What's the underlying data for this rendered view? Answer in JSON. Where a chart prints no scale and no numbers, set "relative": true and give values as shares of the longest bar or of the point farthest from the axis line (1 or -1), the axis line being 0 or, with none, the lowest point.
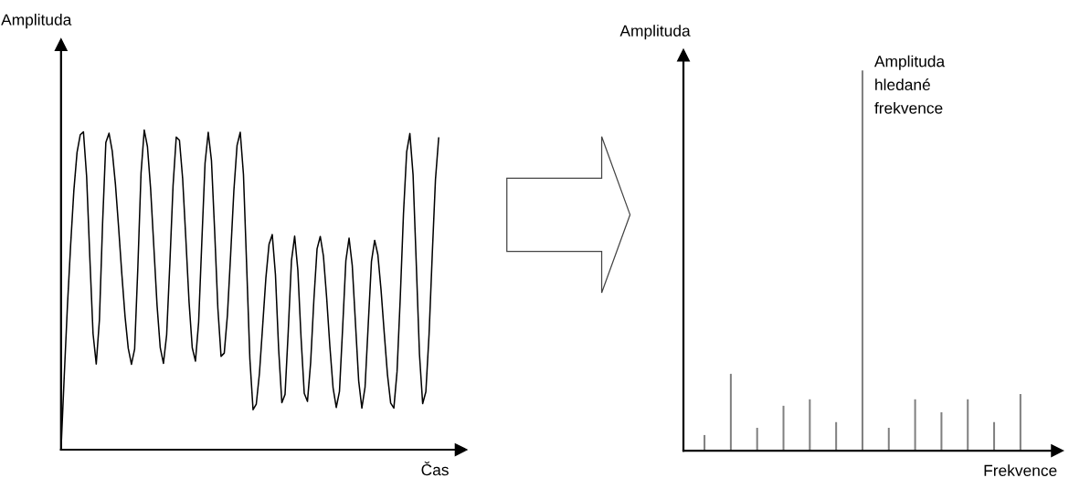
{
  "chart_data": [
    {
      "type": "line",
      "relative": true,
      "xlabel": "Čas",
      "ylabel": "Amplituda",
      "marker": "none",
      "line_style": "solid",
      "categories": [
        null,
        null,
        null,
        null,
        null,
        null,
        null,
        null,
        null,
        null,
        null,
        null,
        null,
        null,
        null,
        null,
        null,
        null,
        null,
        null,
        null,
        null,
        null,
        null,
        null,
        null,
        null,
        null,
        null,
        null,
        null,
        null,
        null,
        null,
        null,
        null,
        null,
        null,
        null,
        null,
        null,
        null,
        null,
        null,
        null,
        null,
        null,
        null,
        null,
        null,
        null,
        null,
        null,
        null,
        null,
        null,
        null,
        null,
        null,
        null,
        null,
        null,
        null,
        null,
        null,
        null,
        null,
        null,
        null,
        null,
        null,
        null,
        null,
        null,
        null,
        null,
        null,
        null,
        null,
        null,
        null,
        null,
        null,
        null,
        null,
        null,
        null,
        null,
        null,
        null,
        null,
        null,
        null,
        null,
        null,
        null,
        null,
        null,
        null,
        null,
        null,
        null,
        null,
        null,
        null,
        null,
        null,
        null,
        null,
        null,
        null,
        null,
        null,
        null,
        null,
        null,
        null,
        null,
        null
      ],
      "series": [
        {
          "color": "#000000",
          "values": [
            0,
            0.23,
            0.45,
            0.64,
            0.81,
            0.93,
            0.985,
            0.994,
            0.854,
            0.6,
            0.363,
            0.268,
            0.407,
            0.713,
            0.961,
            0.99,
            0.934,
            0.83,
            0.694,
            0.549,
            0.417,
            0.317,
            0.267,
            0.315,
            0.57,
            0.865,
            1,
            0.948,
            0.815,
            0.634,
            0.452,
            0.319,
            0.27,
            0.359,
            0.582,
            0.825,
            0.978,
            0.968,
            0.848,
            0.659,
            0.462,
            0.319,
            0.277,
            0.399,
            0.652,
            0.896,
            0.993,
            0.905,
            0.684,
            0.443,
            0.292,
            0.302,
            0.422,
            0.611,
            0.809,
            0.952,
            0.993,
            0.861,
            0.576,
            0.285,
            0.125,
            0.142,
            0.239,
            0.387,
            0.536,
            0.643,
            0.673,
            0.547,
            0.314,
            0.147,
            0.173,
            0.371,
            0.591,
            0.668,
            0.561,
            0.35,
            0.176,
            0.151,
            0.273,
            0.468,
            0.628,
            0.667,
            0.605,
            0.475,
            0.324,
            0.194,
            0.132,
            0.182,
            0.382,
            0.591,
            0.662,
            0.576,
            0.396,
            0.216,
            0.13,
            0.196,
            0.393,
            0.589,
            0.655,
            0.61,
            0.499,
            0.364,
            0.235,
            0.146,
            0.13,
            0.245,
            0.476,
            0.737,
            0.931,
            0.989,
            0.86,
            0.583,
            0.299,
            0.144,
            0.181,
            0.361,
            0.611,
            0.845,
            0.975
          ]
        }
      ]
    },
    {
      "type": "bar",
      "relative": true,
      "xlabel": "Frekvence",
      "ylabel": "Amplituda",
      "categories": [
        null,
        null,
        null,
        null,
        null,
        null,
        null,
        null,
        null,
        null,
        null,
        null,
        null
      ],
      "series": [
        {
          "color": "#808080",
          "values": [
            0.041,
            0.202,
            0.06,
            0.118,
            0.135,
            0.075,
            1,
            0.06,
            0.135,
            0.101,
            0.135,
            0.075,
            0.149
          ]
        }
      ],
      "annotations": [
        "Amplituda\nhledané\nfrekvence"
      ]
    }
  ]
}
